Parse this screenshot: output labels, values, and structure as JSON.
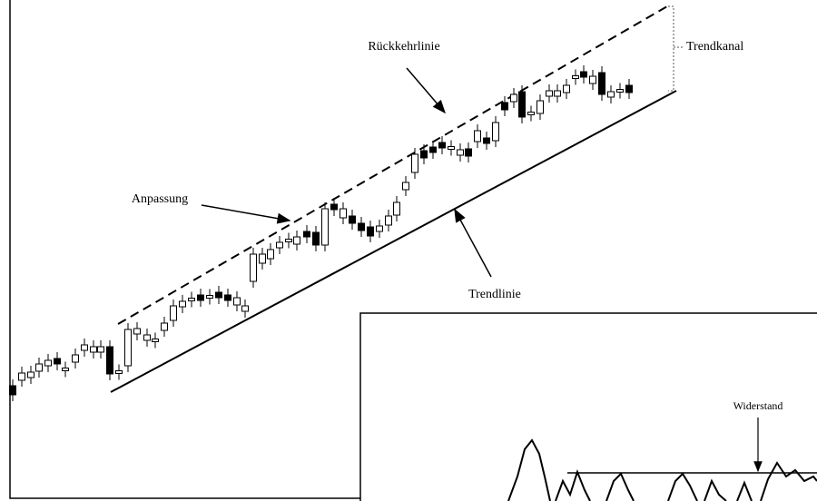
{
  "labels": {
    "return_line": "Rückkehrlinie",
    "trend_channel": "Trendkanal",
    "adjustment": "Anpassung",
    "trend_line": "Trendlinie",
    "resistance": "Widerstand"
  }
}
